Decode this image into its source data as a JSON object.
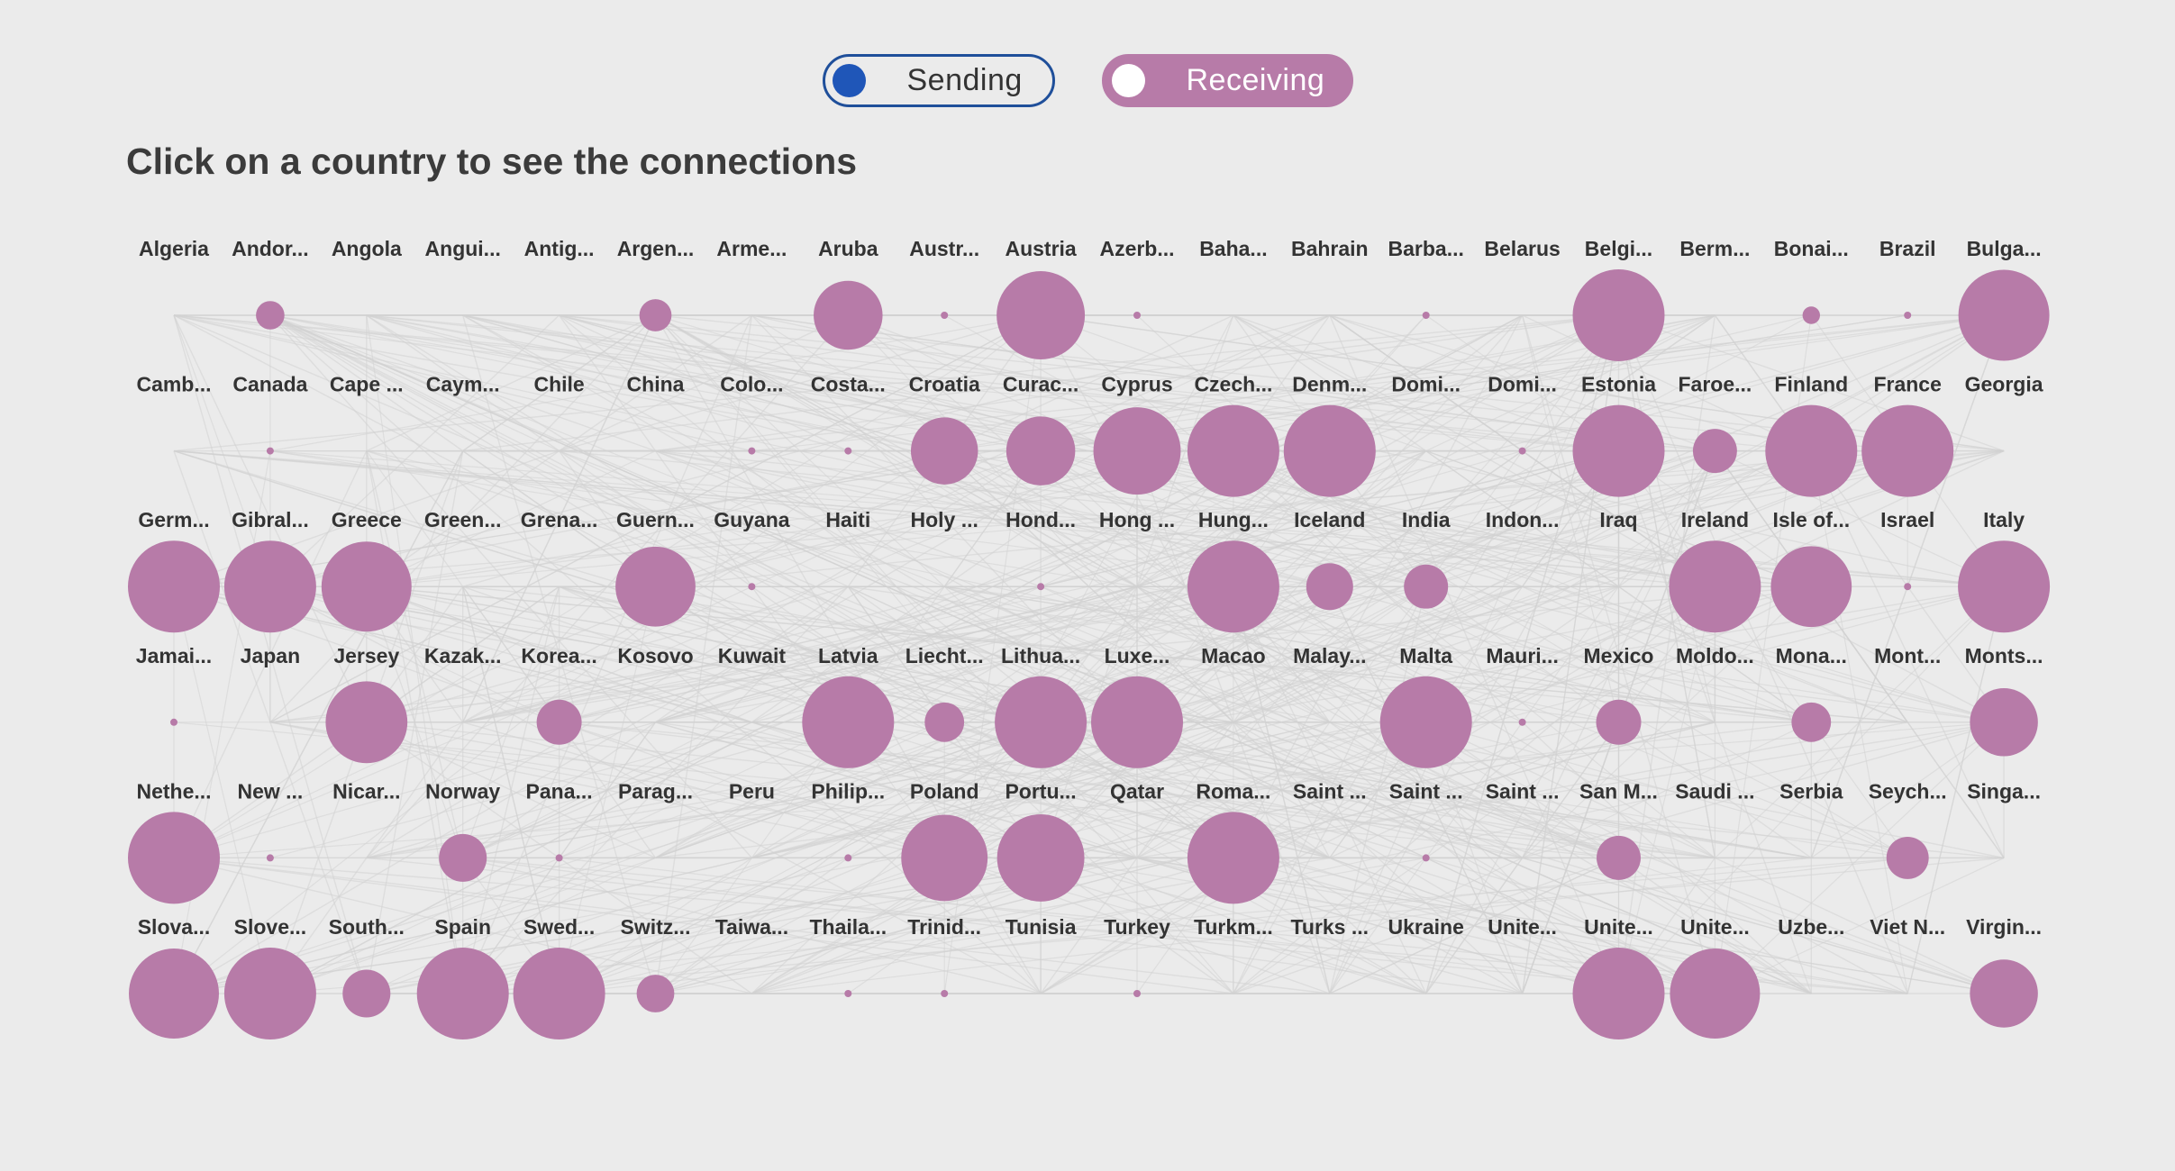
{
  "controls": {
    "sending_label": "Sending",
    "receiving_label": "Receiving",
    "selected": "Receiving"
  },
  "headline": "Click on a country to see the connections",
  "colors": {
    "background": "#ebebeb",
    "bubble": "#b77ba8",
    "sending": "#1f56b8",
    "link": "#d2d2d2"
  },
  "chart_data": {
    "type": "bubble-grid",
    "columns": 20,
    "rows": 6,
    "countries": [
      {
        "label": "Algeria",
        "size": 0
      },
      {
        "label": "Andor...",
        "size": 0.31
      },
      {
        "label": "Angola",
        "size": 0
      },
      {
        "label": "Angui...",
        "size": 0
      },
      {
        "label": "Antig...",
        "size": 0
      },
      {
        "label": "Argen...",
        "size": 0.35
      },
      {
        "label": "Arme...",
        "size": 0
      },
      {
        "label": "Aruba",
        "size": 0.75
      },
      {
        "label": "Austr...",
        "size": 0.05
      },
      {
        "label": "Austria",
        "size": 0.96
      },
      {
        "label": "Azerb...",
        "size": 0.05
      },
      {
        "label": "Baha...",
        "size": 0
      },
      {
        "label": "Bahrain",
        "size": 0
      },
      {
        "label": "Barba...",
        "size": 0.05
      },
      {
        "label": "Belarus",
        "size": 0
      },
      {
        "label": "Belgi...",
        "size": 1.0
      },
      {
        "label": "Berm...",
        "size": 0
      },
      {
        "label": "Bonai...",
        "size": 0.19
      },
      {
        "label": "Brazil",
        "size": 0.05
      },
      {
        "label": "Bulga...",
        "size": 0.99
      },
      {
        "label": "Camb...",
        "size": 0
      },
      {
        "label": "Canada",
        "size": 0.05
      },
      {
        "label": "Cape ...",
        "size": 0
      },
      {
        "label": "Caym...",
        "size": 0
      },
      {
        "label": "Chile",
        "size": 0
      },
      {
        "label": "China",
        "size": 0
      },
      {
        "label": "Colo...",
        "size": 0.05
      },
      {
        "label": "Costa...",
        "size": 0.04
      },
      {
        "label": "Croatia",
        "size": 0.73
      },
      {
        "label": "Curac...",
        "size": 0.75
      },
      {
        "label": "Cyprus",
        "size": 0.95
      },
      {
        "label": "Czech...",
        "size": 1.0
      },
      {
        "label": "Denm...",
        "size": 1.0
      },
      {
        "label": "Domi...",
        "size": 0
      },
      {
        "label": "Domi...",
        "size": 0.04
      },
      {
        "label": "Estonia",
        "size": 1.0
      },
      {
        "label": "Faroe...",
        "size": 0.48
      },
      {
        "label": "Finland",
        "size": 1.0
      },
      {
        "label": "France",
        "size": 1.0
      },
      {
        "label": "Georgia",
        "size": 0
      },
      {
        "label": "Germ...",
        "size": 1.0
      },
      {
        "label": "Gibral...",
        "size": 1.0
      },
      {
        "label": "Greece",
        "size": 0.98
      },
      {
        "label": "Green...",
        "size": 0
      },
      {
        "label": "Grena...",
        "size": 0
      },
      {
        "label": "Guern...",
        "size": 0.87
      },
      {
        "label": "Guyana",
        "size": 0.04
      },
      {
        "label": "Haiti",
        "size": 0
      },
      {
        "label": "Holy ...",
        "size": 0
      },
      {
        "label": "Hond...",
        "size": 0.04
      },
      {
        "label": "Hong ...",
        "size": 0
      },
      {
        "label": "Hung...",
        "size": 1.0
      },
      {
        "label": "Iceland",
        "size": 0.51
      },
      {
        "label": "India",
        "size": 0.48
      },
      {
        "label": "Indon...",
        "size": 0
      },
      {
        "label": "Iraq",
        "size": 0
      },
      {
        "label": "Ireland",
        "size": 1.0
      },
      {
        "label": "Isle of...",
        "size": 0.88
      },
      {
        "label": "Israel",
        "size": 0.04
      },
      {
        "label": "Italy",
        "size": 1.0
      },
      {
        "label": "Jamai...",
        "size": 0.05
      },
      {
        "label": "Japan",
        "size": 0
      },
      {
        "label": "Jersey",
        "size": 0.89
      },
      {
        "label": "Kazak...",
        "size": 0
      },
      {
        "label": "Korea...",
        "size": 0.49
      },
      {
        "label": "Kosovo",
        "size": 0
      },
      {
        "label": "Kuwait",
        "size": 0
      },
      {
        "label": "Latvia",
        "size": 1.0
      },
      {
        "label": "Liecht...",
        "size": 0.43
      },
      {
        "label": "Lithua...",
        "size": 1.0
      },
      {
        "label": "Luxe...",
        "size": 1.0
      },
      {
        "label": "Macao",
        "size": 0
      },
      {
        "label": "Malay...",
        "size": 0
      },
      {
        "label": "Malta",
        "size": 1.0
      },
      {
        "label": "Mauri...",
        "size": 0.06
      },
      {
        "label": "Mexico",
        "size": 0.49
      },
      {
        "label": "Moldo...",
        "size": 0
      },
      {
        "label": "Mona...",
        "size": 0.43
      },
      {
        "label": "Mont...",
        "size": 0
      },
      {
        "label": "Monts...",
        "size": 0.74
      },
      {
        "label": "Nethe...",
        "size": 1.0
      },
      {
        "label": "New ...",
        "size": 0.06
      },
      {
        "label": "Nicar...",
        "size": 0
      },
      {
        "label": "Norway",
        "size": 0.52
      },
      {
        "label": "Pana...",
        "size": 0.04
      },
      {
        "label": "Parag...",
        "size": 0
      },
      {
        "label": "Peru",
        "size": 0
      },
      {
        "label": "Philip...",
        "size": 0.04
      },
      {
        "label": "Poland",
        "size": 0.94
      },
      {
        "label": "Portu...",
        "size": 0.95
      },
      {
        "label": "Qatar",
        "size": 0
      },
      {
        "label": "Roma...",
        "size": 1.0
      },
      {
        "label": "Saint ...",
        "size": 0
      },
      {
        "label": "Saint ...",
        "size": 0.04
      },
      {
        "label": "Saint ...",
        "size": 0
      },
      {
        "label": "San M...",
        "size": 0.48
      },
      {
        "label": "Saudi ...",
        "size": 0
      },
      {
        "label": "Serbia",
        "size": 0
      },
      {
        "label": "Seych...",
        "size": 0.46
      },
      {
        "label": "Singa...",
        "size": 0
      },
      {
        "label": "Slova...",
        "size": 0.98
      },
      {
        "label": "Slove...",
        "size": 1.0
      },
      {
        "label": "South...",
        "size": 0.52
      },
      {
        "label": "Spain",
        "size": 1.0
      },
      {
        "label": "Swed...",
        "size": 1.0
      },
      {
        "label": "Switz...",
        "size": 0.41
      },
      {
        "label": "Taiwa...",
        "size": 0
      },
      {
        "label": "Thaila...",
        "size": 0.04
      },
      {
        "label": "Trinid...",
        "size": 0.04
      },
      {
        "label": "Tunisia",
        "size": 0
      },
      {
        "label": "Turkey",
        "size": 0.04
      },
      {
        "label": "Turkm...",
        "size": 0
      },
      {
        "label": "Turks ...",
        "size": 0
      },
      {
        "label": "Ukraine",
        "size": 0
      },
      {
        "label": "Unite...",
        "size": 0
      },
      {
        "label": "Unite...",
        "size": 1.0
      },
      {
        "label": "Unite...",
        "size": 0.98
      },
      {
        "label": "Uzbe...",
        "size": 0
      },
      {
        "label": "Viet N...",
        "size": 0
      },
      {
        "label": "Virgin...",
        "size": 0.74
      }
    ]
  }
}
